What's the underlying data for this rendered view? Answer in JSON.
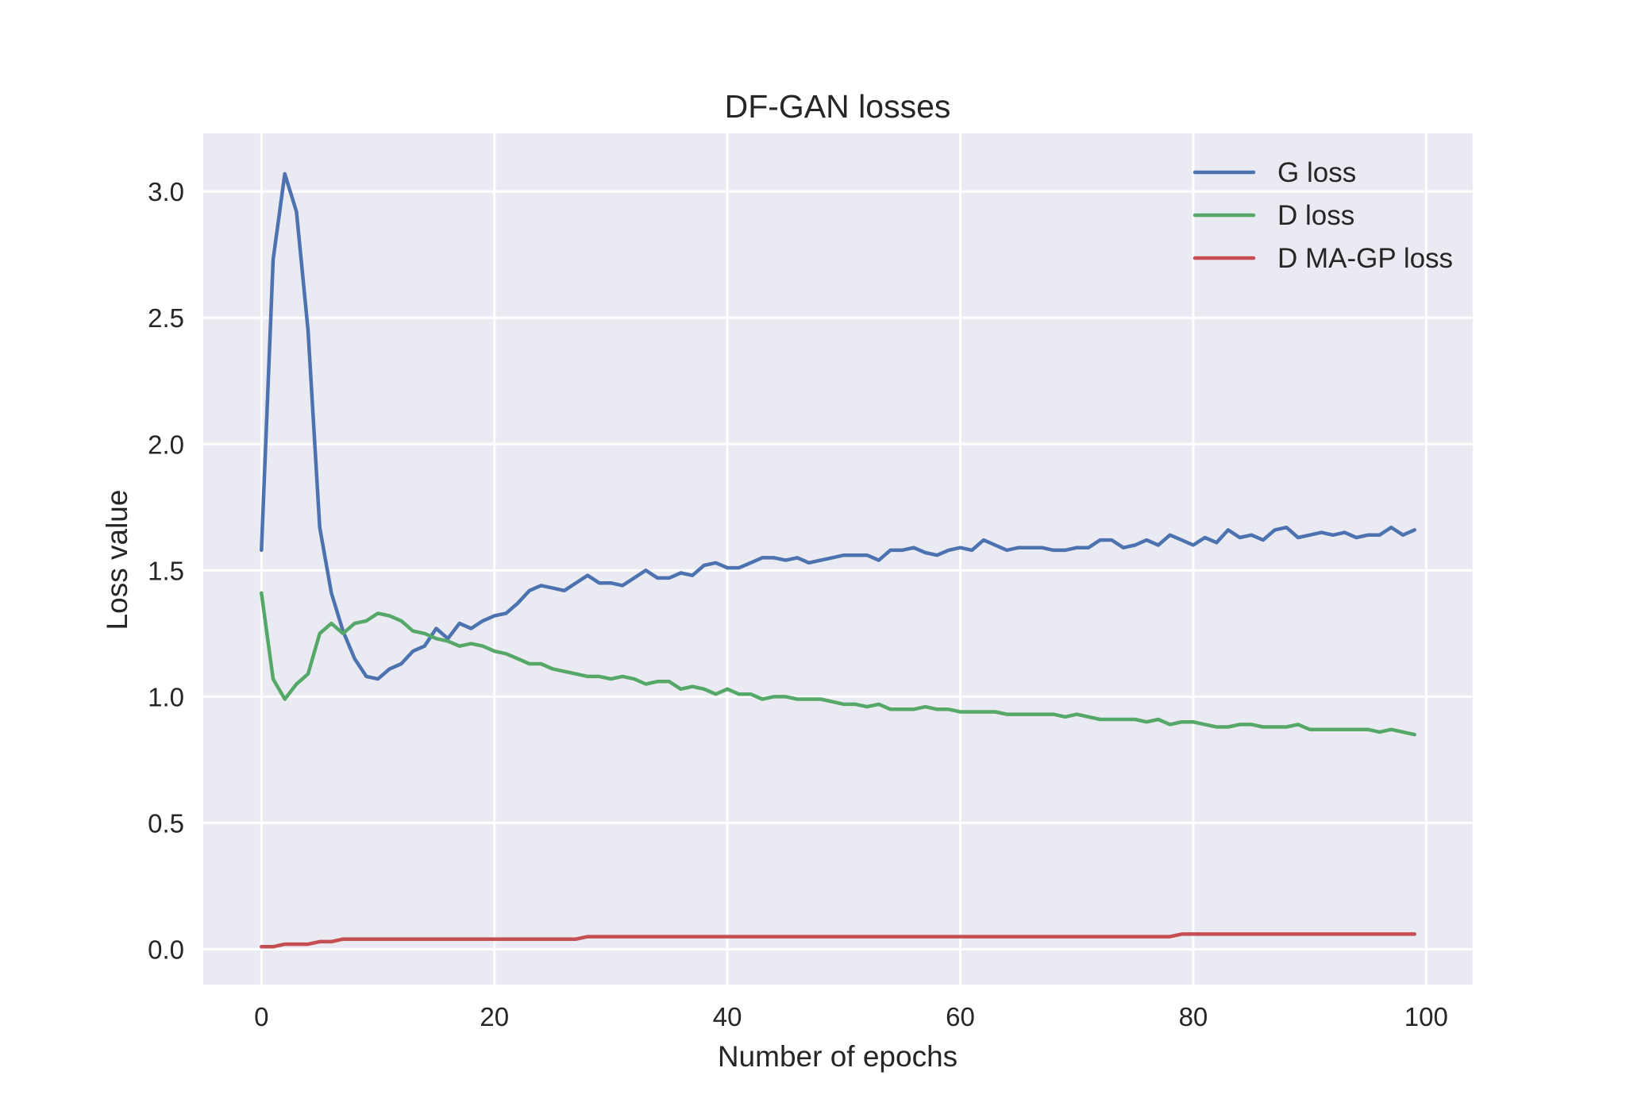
{
  "chart_data": {
    "type": "line",
    "title": "DF-GAN losses",
    "xlabel": "Number of epochs",
    "ylabel": "Loss value",
    "xlim": [
      -5,
      104
    ],
    "ylim": [
      -0.14,
      3.23
    ],
    "xticks": [
      0,
      20,
      40,
      60,
      80,
      100
    ],
    "yticks": [
      0.0,
      0.5,
      1.0,
      1.5,
      2.0,
      2.5,
      3.0
    ],
    "xtick_labels": [
      "0",
      "20",
      "40",
      "60",
      "80",
      "100"
    ],
    "ytick_labels": [
      "0.0",
      "0.5",
      "1.0",
      "1.5",
      "2.0",
      "2.5",
      "3.0"
    ],
    "grid": true,
    "legend_position": "top-right",
    "colors": {
      "axes_background": "#EAEAF2",
      "grid": "#FFFFFF",
      "text": "#262626"
    },
    "series": [
      {
        "name": "G loss",
        "color": "#4C72B0",
        "values": [
          1.58,
          2.73,
          3.07,
          2.92,
          2.45,
          1.67,
          1.41,
          1.26,
          1.15,
          1.08,
          1.07,
          1.11,
          1.13,
          1.18,
          1.2,
          1.27,
          1.23,
          1.29,
          1.27,
          1.3,
          1.32,
          1.33,
          1.37,
          1.42,
          1.44,
          1.43,
          1.42,
          1.45,
          1.48,
          1.45,
          1.45,
          1.44,
          1.47,
          1.5,
          1.47,
          1.47,
          1.49,
          1.48,
          1.52,
          1.53,
          1.51,
          1.51,
          1.53,
          1.55,
          1.55,
          1.54,
          1.55,
          1.53,
          1.54,
          1.55,
          1.56,
          1.56,
          1.56,
          1.54,
          1.58,
          1.58,
          1.59,
          1.57,
          1.56,
          1.58,
          1.59,
          1.58,
          1.62,
          1.6,
          1.58,
          1.59,
          1.59,
          1.59,
          1.58,
          1.58,
          1.59,
          1.59,
          1.62,
          1.62,
          1.59,
          1.6,
          1.62,
          1.6,
          1.64,
          1.62,
          1.6,
          1.63,
          1.61,
          1.66,
          1.63,
          1.64,
          1.62,
          1.66,
          1.67,
          1.63,
          1.64,
          1.65,
          1.64,
          1.65,
          1.63,
          1.64,
          1.64,
          1.67,
          1.64,
          1.66
        ]
      },
      {
        "name": "D loss",
        "color": "#55A868",
        "values": [
          1.41,
          1.07,
          0.99,
          1.05,
          1.09,
          1.25,
          1.29,
          1.25,
          1.29,
          1.3,
          1.33,
          1.32,
          1.3,
          1.26,
          1.25,
          1.23,
          1.22,
          1.2,
          1.21,
          1.2,
          1.18,
          1.17,
          1.15,
          1.13,
          1.13,
          1.11,
          1.1,
          1.09,
          1.08,
          1.08,
          1.07,
          1.08,
          1.07,
          1.05,
          1.06,
          1.06,
          1.03,
          1.04,
          1.03,
          1.01,
          1.03,
          1.01,
          1.01,
          0.99,
          1.0,
          1.0,
          0.99,
          0.99,
          0.99,
          0.98,
          0.97,
          0.97,
          0.96,
          0.97,
          0.95,
          0.95,
          0.95,
          0.96,
          0.95,
          0.95,
          0.94,
          0.94,
          0.94,
          0.94,
          0.93,
          0.93,
          0.93,
          0.93,
          0.93,
          0.92,
          0.93,
          0.92,
          0.91,
          0.91,
          0.91,
          0.91,
          0.9,
          0.91,
          0.89,
          0.9,
          0.9,
          0.89,
          0.88,
          0.88,
          0.89,
          0.89,
          0.88,
          0.88,
          0.88,
          0.89,
          0.87,
          0.87,
          0.87,
          0.87,
          0.87,
          0.87,
          0.86,
          0.87,
          0.86,
          0.85
        ]
      },
      {
        "name": "D MA-GP loss",
        "color": "#C44E52",
        "values": [
          0.01,
          0.01,
          0.02,
          0.02,
          0.02,
          0.03,
          0.03,
          0.04,
          0.04,
          0.04,
          0.04,
          0.04,
          0.04,
          0.04,
          0.04,
          0.04,
          0.04,
          0.04,
          0.04,
          0.04,
          0.04,
          0.04,
          0.04,
          0.04,
          0.04,
          0.04,
          0.04,
          0.04,
          0.05,
          0.05,
          0.05,
          0.05,
          0.05,
          0.05,
          0.05,
          0.05,
          0.05,
          0.05,
          0.05,
          0.05,
          0.05,
          0.05,
          0.05,
          0.05,
          0.05,
          0.05,
          0.05,
          0.05,
          0.05,
          0.05,
          0.05,
          0.05,
          0.05,
          0.05,
          0.05,
          0.05,
          0.05,
          0.05,
          0.05,
          0.05,
          0.05,
          0.05,
          0.05,
          0.05,
          0.05,
          0.05,
          0.05,
          0.05,
          0.05,
          0.05,
          0.05,
          0.05,
          0.05,
          0.05,
          0.05,
          0.05,
          0.05,
          0.05,
          0.05,
          0.06,
          0.06,
          0.06,
          0.06,
          0.06,
          0.06,
          0.06,
          0.06,
          0.06,
          0.06,
          0.06,
          0.06,
          0.06,
          0.06,
          0.06,
          0.06,
          0.06,
          0.06,
          0.06,
          0.06,
          0.06
        ]
      }
    ]
  }
}
